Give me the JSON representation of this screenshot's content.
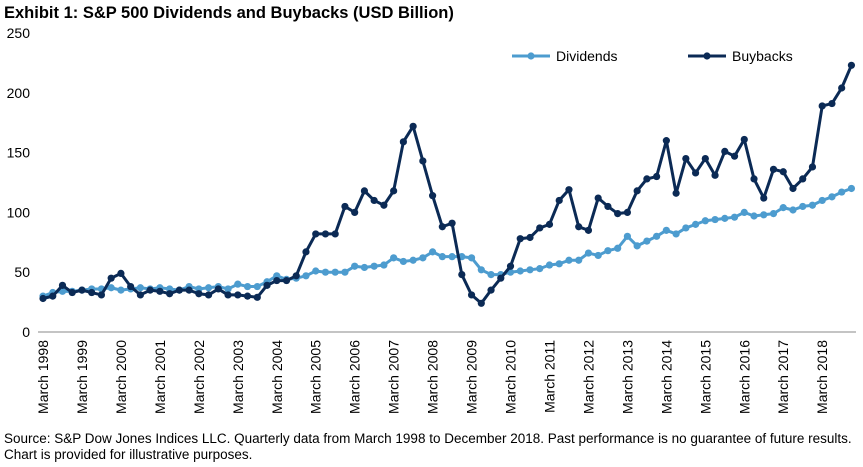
{
  "chart_data": {
    "type": "line",
    "title": "Exhibit 1: S&P 500 Dividends and Buybacks (USD Billion)",
    "note": "Source: S&P Dow Jones Indices LLC. Quarterly data from March 1998 to December 2018. Past performance is no guarantee of future results. Chart is provided for illustrative purposes.",
    "categories": [
      "March 1998",
      null,
      null,
      null,
      "March 1999",
      null,
      null,
      null,
      "March 2000",
      null,
      null,
      null,
      "March 2001",
      null,
      null,
      null,
      "March 2002",
      null,
      null,
      null,
      "March 2003",
      null,
      null,
      null,
      "March 2004",
      null,
      null,
      null,
      "March 2005",
      null,
      null,
      null,
      "March 2006",
      null,
      null,
      null,
      "March 2007",
      null,
      null,
      null,
      "March 2008",
      null,
      null,
      null,
      "March 2009",
      null,
      null,
      null,
      "March 2010",
      null,
      null,
      null,
      "March 2011",
      null,
      null,
      null,
      "March 2012",
      null,
      null,
      null,
      "March 2013",
      null,
      null,
      null,
      "March 2014",
      null,
      null,
      null,
      "March 2015",
      null,
      null,
      null,
      "March 2016",
      null,
      null,
      null,
      "March 2017",
      null,
      null,
      null,
      "March 2018",
      null,
      null,
      null
    ],
    "series": [
      {
        "name": "Dividends",
        "color": "#4d9ccf",
        "values": [
          30,
          33,
          34,
          34,
          35,
          36,
          36,
          37,
          35,
          36,
          37,
          36,
          37,
          36,
          35,
          38,
          36,
          37,
          38,
          36,
          40,
          38,
          38,
          42,
          47,
          44,
          45,
          47,
          51,
          50,
          50,
          50,
          55,
          54,
          55,
          56,
          62,
          59,
          60,
          62,
          67,
          63,
          63,
          63,
          62,
          52,
          48,
          48,
          50,
          51,
          52,
          53,
          56,
          57,
          60,
          60,
          66,
          64,
          68,
          70,
          80,
          72,
          76,
          80,
          85,
          82,
          87,
          90,
          93,
          94,
          95,
          96,
          100,
          97,
          98,
          99,
          104,
          102,
          105,
          106,
          110,
          113,
          117,
          120
        ]
      },
      {
        "name": "Buybacks",
        "color": "#0b2a55",
        "values": [
          28,
          30,
          39,
          33,
          35,
          33,
          31,
          45,
          49,
          38,
          31,
          35,
          34,
          32,
          35,
          35,
          32,
          31,
          36,
          31,
          31,
          30,
          29,
          39,
          43,
          43,
          47,
          67,
          82,
          82,
          82,
          105,
          100,
          118,
          110,
          106,
          118,
          159,
          172,
          143,
          114,
          88,
          91,
          48,
          31,
          24,
          35,
          45,
          55,
          78,
          79,
          87,
          90,
          110,
          119,
          88,
          85,
          112,
          105,
          99,
          100,
          118,
          128,
          130,
          160,
          116,
          145,
          133,
          145,
          131,
          151,
          147,
          161,
          128,
          112,
          136,
          134,
          120,
          128,
          138,
          189,
          191,
          204,
          223
        ]
      }
    ],
    "ylim": [
      0,
      250
    ],
    "yticks": [
      0,
      50,
      100,
      150,
      200,
      250
    ],
    "grid": false,
    "legend": "top"
  }
}
